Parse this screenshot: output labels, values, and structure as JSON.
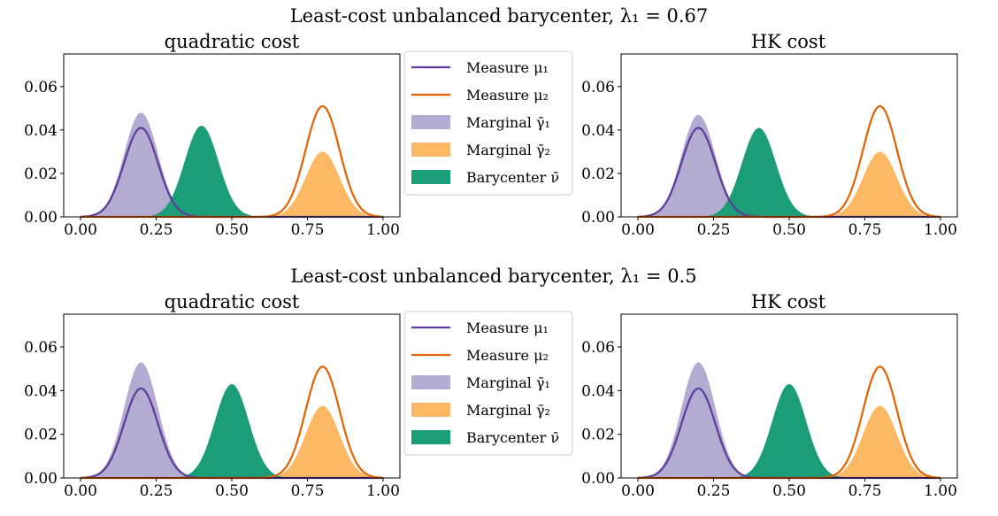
{
  "colors": {
    "mu1": "#5e3c99",
    "mu2": "#e66101",
    "gamma1": "#b2abd2",
    "gamma2": "#fdb863",
    "bary": "#1b9e77"
  },
  "legend": [
    {
      "key": "mu1",
      "kind": "line",
      "label": "Measure μ₁"
    },
    {
      "key": "mu2",
      "kind": "line",
      "label": "Measure μ₂"
    },
    {
      "key": "gamma1",
      "kind": "patch",
      "label": "Marginal γ̄₁"
    },
    {
      "key": "gamma2",
      "kind": "patch",
      "label": "Marginal γ̄₂"
    },
    {
      "key": "bary",
      "kind": "patch",
      "label": "Barycenter ν̄"
    }
  ],
  "chart_data": [
    {
      "suptitle": "Least-cost unbalanced barycenter, λ₁ = 0.67",
      "panels": [
        {
          "title": "quadratic cost",
          "type": "area",
          "xlim": [
            0,
            1
          ],
          "ylim": [
            0,
            0.075
          ],
          "xticks": [
            "0.00",
            "0.25",
            "0.50",
            "0.75",
            "1.00"
          ],
          "yticks": [
            "0.00",
            "0.02",
            "0.04",
            "0.06"
          ],
          "sigma": 0.056,
          "series": {
            "mu1": {
              "center": 0.2,
              "peak": 0.041
            },
            "mu2": {
              "center": 0.8,
              "peak": 0.051
            },
            "gamma1": {
              "center": 0.2,
              "peak": 0.048
            },
            "gamma2": {
              "center": 0.8,
              "peak": 0.03
            },
            "bary": {
              "center": 0.4,
              "peak": 0.042
            }
          }
        },
        {
          "title": "HK cost",
          "type": "area",
          "xlim": [
            0,
            1
          ],
          "ylim": [
            0,
            0.075
          ],
          "xticks": [
            "0.00",
            "0.25",
            "0.50",
            "0.75",
            "1.00"
          ],
          "yticks": [
            "0.00",
            "0.02",
            "0.04",
            "0.06"
          ],
          "sigma": 0.056,
          "series": {
            "mu1": {
              "center": 0.2,
              "peak": 0.041
            },
            "mu2": {
              "center": 0.8,
              "peak": 0.051
            },
            "gamma1": {
              "center": 0.2,
              "peak": 0.047
            },
            "gamma2": {
              "center": 0.8,
              "peak": 0.03
            },
            "bary": {
              "center": 0.4,
              "peak": 0.041
            }
          }
        }
      ]
    },
    {
      "suptitle": "Least-cost unbalanced barycenter, λ₁ = 0.5",
      "panels": [
        {
          "title": "quadratic cost",
          "type": "area",
          "xlim": [
            0,
            1
          ],
          "ylim": [
            0,
            0.075
          ],
          "xticks": [
            "0.00",
            "0.25",
            "0.50",
            "0.75",
            "1.00"
          ],
          "yticks": [
            "0.00",
            "0.02",
            "0.04",
            "0.06"
          ],
          "sigma": 0.056,
          "series": {
            "mu1": {
              "center": 0.2,
              "peak": 0.041
            },
            "mu2": {
              "center": 0.8,
              "peak": 0.051
            },
            "gamma1": {
              "center": 0.2,
              "peak": 0.053
            },
            "gamma2": {
              "center": 0.8,
              "peak": 0.033
            },
            "bary": {
              "center": 0.5,
              "peak": 0.043
            }
          }
        },
        {
          "title": "HK cost",
          "type": "area",
          "xlim": [
            0,
            1
          ],
          "ylim": [
            0,
            0.075
          ],
          "xticks": [
            "0.00",
            "0.25",
            "0.50",
            "0.75",
            "1.00"
          ],
          "yticks": [
            "0.00",
            "0.02",
            "0.04",
            "0.06"
          ],
          "sigma": 0.056,
          "series": {
            "mu1": {
              "center": 0.2,
              "peak": 0.041
            },
            "mu2": {
              "center": 0.8,
              "peak": 0.051
            },
            "gamma1": {
              "center": 0.2,
              "peak": 0.053
            },
            "gamma2": {
              "center": 0.8,
              "peak": 0.033
            },
            "bary": {
              "center": 0.5,
              "peak": 0.043
            }
          }
        }
      ]
    }
  ]
}
